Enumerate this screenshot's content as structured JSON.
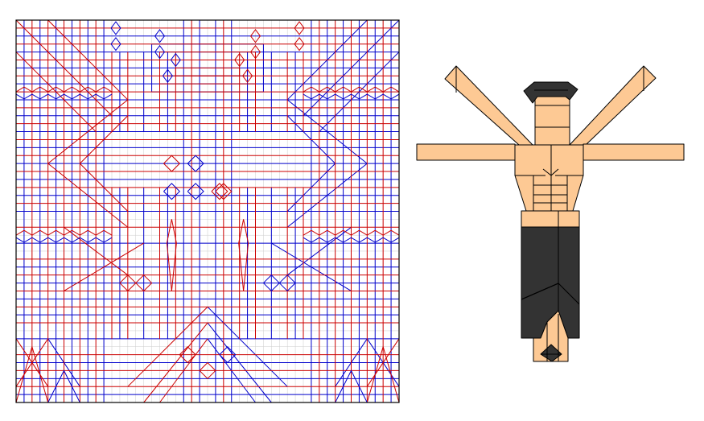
{
  "crease_pattern": {
    "grid_divisions": 48,
    "colors": {
      "mountain": "#cc0000",
      "valley": "#0000cc",
      "grid": "#cccccc",
      "border": "#000000"
    }
  },
  "folded_model": {
    "colors": {
      "skin": "#fdc994",
      "hair": "#333333",
      "pants": "#333333",
      "outline": "#000000"
    }
  }
}
